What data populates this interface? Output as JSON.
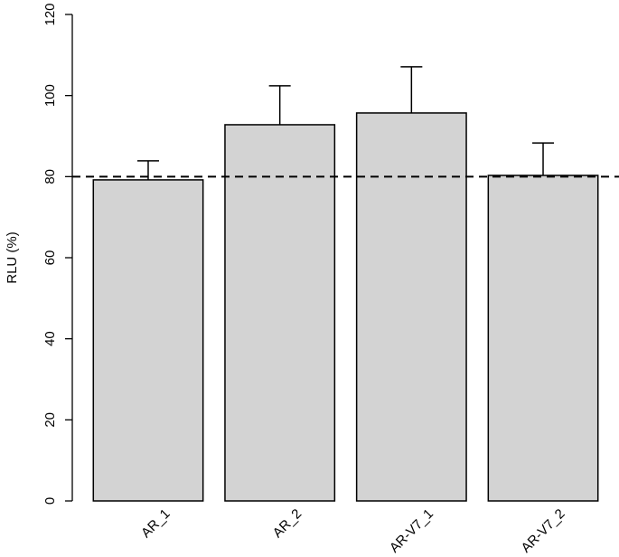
{
  "chart_data": {
    "type": "bar",
    "y_label": "RLU (%)",
    "categories": [
      "AR_1",
      "AR_2",
      "AR-V7_1",
      "AR-V7_2"
    ],
    "values": [
      79.2,
      92.8,
      95.7,
      80.3
    ],
    "errors": [
      4.7,
      9.6,
      11.4,
      8
    ],
    "color": "#d3d3d3",
    "reference_line": 80,
    "ylim": [
      0,
      120
    ],
    "yticks": [
      0,
      20,
      40,
      60,
      80,
      100,
      120
    ]
  }
}
